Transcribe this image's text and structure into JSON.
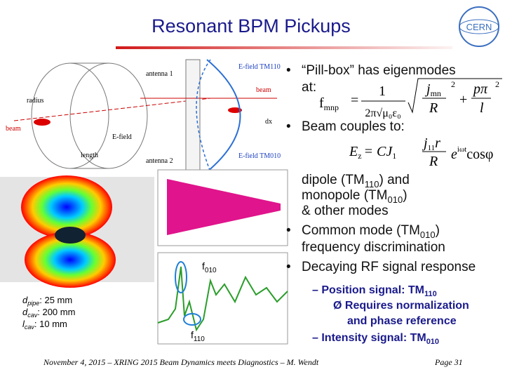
{
  "header": {
    "title": "Resonant BPM Pickups",
    "logo": "CERN"
  },
  "bullets": {
    "b1_line1": "“Pill-box” has eigenmodes",
    "b1_line2": "at:",
    "b2": "Beam couples to:",
    "b2_dipole": {
      "text": "dipole (TM",
      "sub": "110",
      "after": ") and"
    },
    "b2_monopole": {
      "text": "monopole (TM",
      "sub": "010",
      "after": ")"
    },
    "b2_other": "& other modes",
    "b3": {
      "text": "Common mode (TM",
      "sub": "010",
      "after": ")"
    },
    "b3_line2": "frequency discrimination",
    "b4": "Decaying RF signal response",
    "s1": {
      "text": "– Position signal: TM",
      "sub": "110"
    },
    "s1a": "Ø Requires normalization",
    "s1b": "and phase reference",
    "s2": {
      "text": "– Intensity signal: TM",
      "sub": "010"
    }
  },
  "eq1": {
    "f": "f",
    "sub": "mnp",
    "eq": "=",
    "num": "1",
    "den": "2π√μ₀ε₀",
    "j": "j",
    "jsub": "mn",
    "R": "R",
    "p": "pπ",
    "l": "l",
    "sq1": "2",
    "sq2": "2"
  },
  "eq2": {
    "E": "E",
    "Esub": "z",
    "mid": "= CJ",
    "Jsub": "1",
    "j": "j",
    "jsub": "11",
    "r": "r",
    "R": "R",
    "e": "e",
    "esup": "iωt",
    "cos": "cosφ"
  },
  "figure_labels": {
    "efield_tm110": "E-field TM110",
    "beam": "beam",
    "antenna1": "antenna 1",
    "dx": "dx",
    "efield_tm010": "E-field TM010",
    "antenna2": "antenna 2",
    "radius": "radius",
    "length": "length",
    "beam_left": "beam",
    "efield": "E-field",
    "f010": {
      "f": "f",
      "sub": "010"
    },
    "f110": {
      "f": "f",
      "sub": "110"
    }
  },
  "dimensions": [
    {
      "d": "d",
      "sub": "pipe",
      "value": ": 25 mm"
    },
    {
      "d": "d",
      "sub": "cav",
      "value": ": 200 mm"
    },
    {
      "d": "l",
      "sub": "cav",
      "value": ": 10 mm"
    }
  ],
  "footer": {
    "left": "November 4, 2015 – XRING 2015 Beam Dynamics meets Diagnostics – M. Wendt",
    "right": "Page 31"
  }
}
